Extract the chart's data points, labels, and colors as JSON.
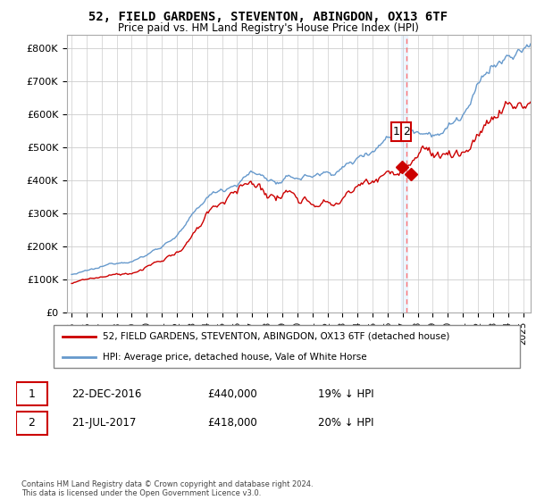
{
  "title": "52, FIELD GARDENS, STEVENTON, ABINGDON, OX13 6TF",
  "subtitle": "Price paid vs. HM Land Registry's House Price Index (HPI)",
  "legend_label_red": "52, FIELD GARDENS, STEVENTON, ABINGDON, OX13 6TF (detached house)",
  "legend_label_blue": "HPI: Average price, detached house, Vale of White Horse",
  "annotation1_date": "22-DEC-2016",
  "annotation1_price": "£440,000",
  "annotation1_hpi": "19% ↓ HPI",
  "annotation2_date": "21-JUL-2017",
  "annotation2_price": "£418,000",
  "annotation2_hpi": "20% ↓ HPI",
  "footer": "Contains HM Land Registry data © Crown copyright and database right 2024.\nThis data is licensed under the Open Government Licence v3.0.",
  "red_color": "#cc0000",
  "blue_color": "#6699cc",
  "ylim": [
    0,
    840000
  ],
  "yticks": [
    0,
    100000,
    200000,
    300000,
    400000,
    500000,
    600000,
    700000,
    800000
  ],
  "ytick_labels": [
    "£0",
    "£100K",
    "£200K",
    "£300K",
    "£400K",
    "£500K",
    "£600K",
    "£700K",
    "£800K"
  ],
  "sale1_x": 2016.97,
  "sale1_y": 440000,
  "sale2_x": 2017.55,
  "sale2_y": 418000,
  "vline_x": 2017.25,
  "xmin": 1995,
  "xmax": 2025
}
